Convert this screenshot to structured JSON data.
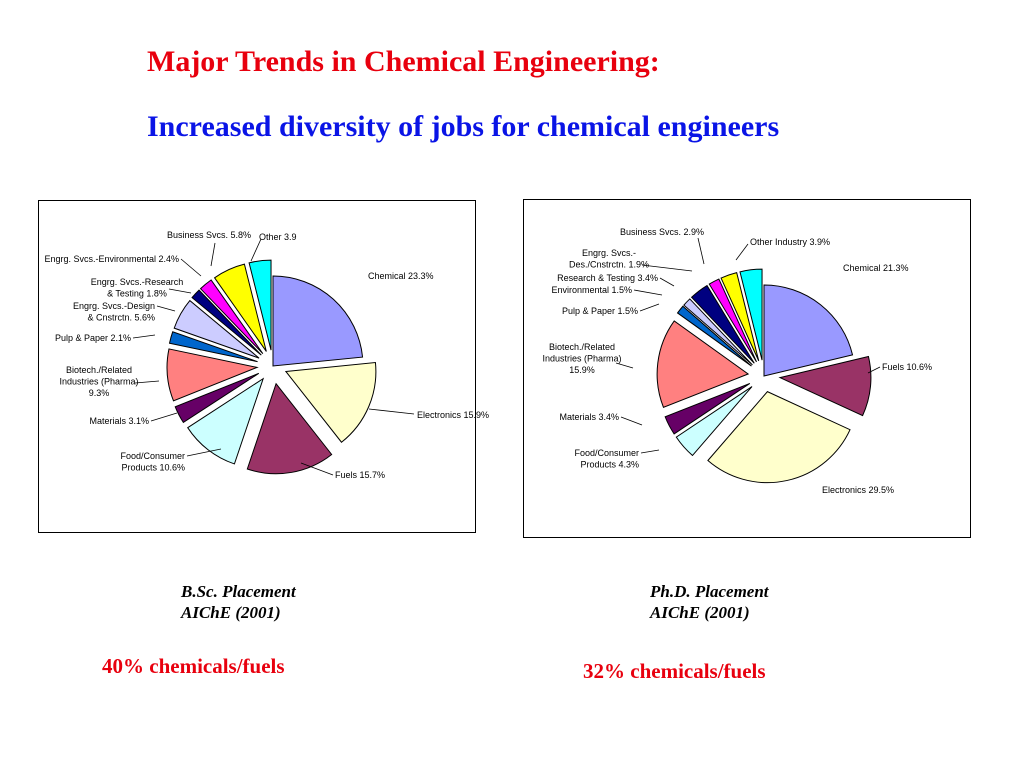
{
  "heading": {
    "title": "Major Trends in Chemical Engineering:",
    "subtitle": "Increased diversity of jobs for chemical engineers"
  },
  "charts": [
    {
      "caption_line1": "B.Sc. Placement",
      "caption_line2": "AIChE (2001)",
      "summary": "40% chemicals/fuels"
    },
    {
      "caption_line1": "Ph.D. Placement",
      "caption_line2": "AIChE (2001)",
      "summary": "32% chemicals/fuels"
    }
  ],
  "chart_data": [
    {
      "type": "pie",
      "title": "",
      "legend": "none",
      "series": [
        {
          "name": "Chemical",
          "value": 23.3,
          "label_lines": [
            "Chemical 23.3%"
          ],
          "color": "#9999ff"
        },
        {
          "name": "Electronics",
          "value": 15.9,
          "label_lines": [
            "Electronics 15.9%"
          ],
          "color": "#ffffcc"
        },
        {
          "name": "Fuels",
          "value": 15.7,
          "label_lines": [
            "Fuels 15.7%"
          ],
          "color": "#993366"
        },
        {
          "name": "Food/Consumer Products",
          "value": 10.6,
          "label_lines": [
            "Food/Consumer",
            "Products 10.6%"
          ],
          "color": "#ccffff"
        },
        {
          "name": "Materials",
          "value": 3.1,
          "label_lines": [
            "Materials 3.1%"
          ],
          "color": "#660066"
        },
        {
          "name": "Biotech./Related Industries (Pharma)",
          "value": 9.3,
          "label_lines": [
            "Biotech./Related",
            "Industries (Pharma)",
            "9.3%"
          ],
          "color": "#ff8080"
        },
        {
          "name": "Pulp & Paper",
          "value": 2.1,
          "label_lines": [
            "Pulp & Paper 2.1%"
          ],
          "color": "#0066cc"
        },
        {
          "name": "Engrg. Svcs.-Design & Cnstrctn.",
          "value": 5.6,
          "label_lines": [
            "Engrg. Svcs.-Design",
            "& Cnstrctn. 5.6%"
          ],
          "color": "#ccccff"
        },
        {
          "name": "Engrg. Svcs.-Research & Testing",
          "value": 1.8,
          "label_lines": [
            "Engrg. Svcs.-Research",
            "& Testing 1.8%"
          ],
          "color": "#000080"
        },
        {
          "name": "Engrg. Svcs.-Environmental",
          "value": 2.4,
          "label_lines": [
            "Engrg. Svcs.-Environmental 2.4%"
          ],
          "color": "#ff00ff"
        },
        {
          "name": "Business Svcs.",
          "value": 5.8,
          "label_lines": [
            "Business Svcs. 5.8%"
          ],
          "color": "#ffff00"
        },
        {
          "name": "Other",
          "value": 3.9,
          "label_lines": [
            "Other 3.9"
          ],
          "color": "#00ffff"
        }
      ]
    },
    {
      "type": "pie",
      "title": "",
      "legend": "none",
      "series": [
        {
          "name": "Chemical",
          "value": 21.3,
          "label_lines": [
            "Chemical 21.3%"
          ],
          "color": "#9999ff"
        },
        {
          "name": "Fuels",
          "value": 10.6,
          "label_lines": [
            "Fuels 10.6%"
          ],
          "color": "#993366"
        },
        {
          "name": "Electronics",
          "value": 29.5,
          "label_lines": [
            "Electronics 29.5%"
          ],
          "color": "#ffffcc"
        },
        {
          "name": "Food/Consumer Products",
          "value": 4.3,
          "label_lines": [
            "Food/Consumer",
            "Products 4.3%"
          ],
          "color": "#ccffff"
        },
        {
          "name": "Materials",
          "value": 3.4,
          "label_lines": [
            "Materials 3.4%"
          ],
          "color": "#660066"
        },
        {
          "name": "Biotech./Related Industries (Pharma)",
          "value": 15.9,
          "label_lines": [
            "Biotech./Related",
            "Industries (Pharma)",
            "15.9%"
          ],
          "color": "#ff8080"
        },
        {
          "name": "Pulp & Paper",
          "value": 1.5,
          "label_lines": [
            "Pulp & Paper 1.5%"
          ],
          "color": "#0066cc"
        },
        {
          "name": "Environmental",
          "value": 1.5,
          "label_lines": [
            "Environmental 1.5%"
          ],
          "color": "#ccccff"
        },
        {
          "name": "Research & Testing",
          "value": 3.4,
          "label_lines": [
            "Research & Testing 3.4%"
          ],
          "color": "#000080"
        },
        {
          "name": "Engrg. Svcs.-Des./Cnstrctn.",
          "value": 1.9,
          "label_lines": [
            "Engrg. Svcs.-",
            "Des./Cnstrctn. 1.9%"
          ],
          "color": "#ff00ff"
        },
        {
          "name": "Business Svcs.",
          "value": 2.9,
          "label_lines": [
            "Business Svcs. 2.9%"
          ],
          "color": "#ffff00"
        },
        {
          "name": "Other Industry",
          "value": 3.9,
          "label_lines": [
            "Other Industry 3.9%"
          ],
          "color": "#00ffff"
        }
      ]
    }
  ]
}
